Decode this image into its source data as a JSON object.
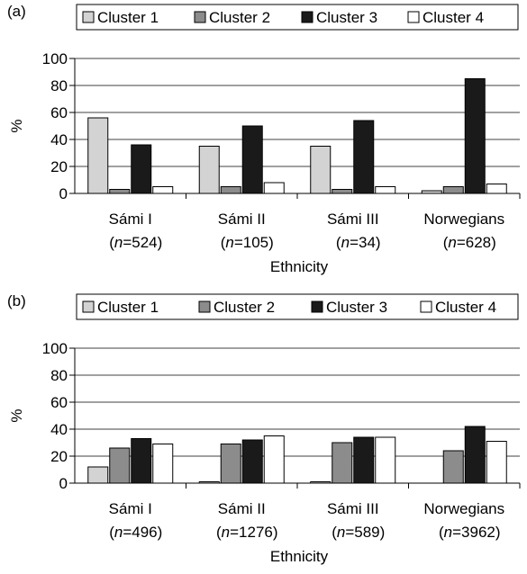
{
  "chart_data": [
    {
      "panel_label": "(a)",
      "type": "bar",
      "categories": [
        "Sámi I",
        "Sámi II",
        "Sámi III",
        "Norwegians"
      ],
      "category_n": [
        "524",
        "105",
        "34",
        "628"
      ],
      "series": [
        {
          "name": "Cluster 1",
          "color": "#d3d3d3",
          "values": [
            56,
            35,
            35,
            2
          ]
        },
        {
          "name": "Cluster 2",
          "color": "#8c8c8c",
          "values": [
            3,
            5,
            3,
            5
          ]
        },
        {
          "name": "Cluster 3",
          "color": "#1a1a1a",
          "values": [
            36,
            50,
            54,
            85
          ]
        },
        {
          "name": "Cluster 4",
          "color": "#ffffff",
          "values": [
            5,
            8,
            5,
            7
          ]
        }
      ],
      "xlabel": "Ethnicity",
      "ylabel": "%",
      "ylim": [
        0,
        100
      ],
      "yticks": [
        "0",
        "20",
        "40",
        "60",
        "80",
        "100"
      ],
      "grid": true,
      "legend": "top"
    },
    {
      "panel_label": "(b)",
      "type": "bar",
      "categories": [
        "Sámi I",
        "Sámi II",
        "Sámi III",
        "Norwegians"
      ],
      "category_n": [
        "496",
        "1276",
        "589",
        "3962"
      ],
      "series": [
        {
          "name": "Cluster 1",
          "color": "#d3d3d3",
          "values": [
            12,
            1,
            1,
            0
          ]
        },
        {
          "name": "Cluster 2",
          "color": "#8c8c8c",
          "values": [
            26,
            29,
            30,
            24
          ]
        },
        {
          "name": "Cluster 3",
          "color": "#1a1a1a",
          "values": [
            33,
            32,
            34,
            42
          ]
        },
        {
          "name": "Cluster 4",
          "color": "#ffffff",
          "values": [
            29,
            35,
            34,
            31
          ]
        }
      ],
      "xlabel": "Ethnicity",
      "ylabel": "%",
      "ylim": [
        0,
        100
      ],
      "yticks": [
        "0",
        "20",
        "40",
        "60",
        "80",
        "100"
      ],
      "grid": true,
      "legend": "top"
    }
  ]
}
